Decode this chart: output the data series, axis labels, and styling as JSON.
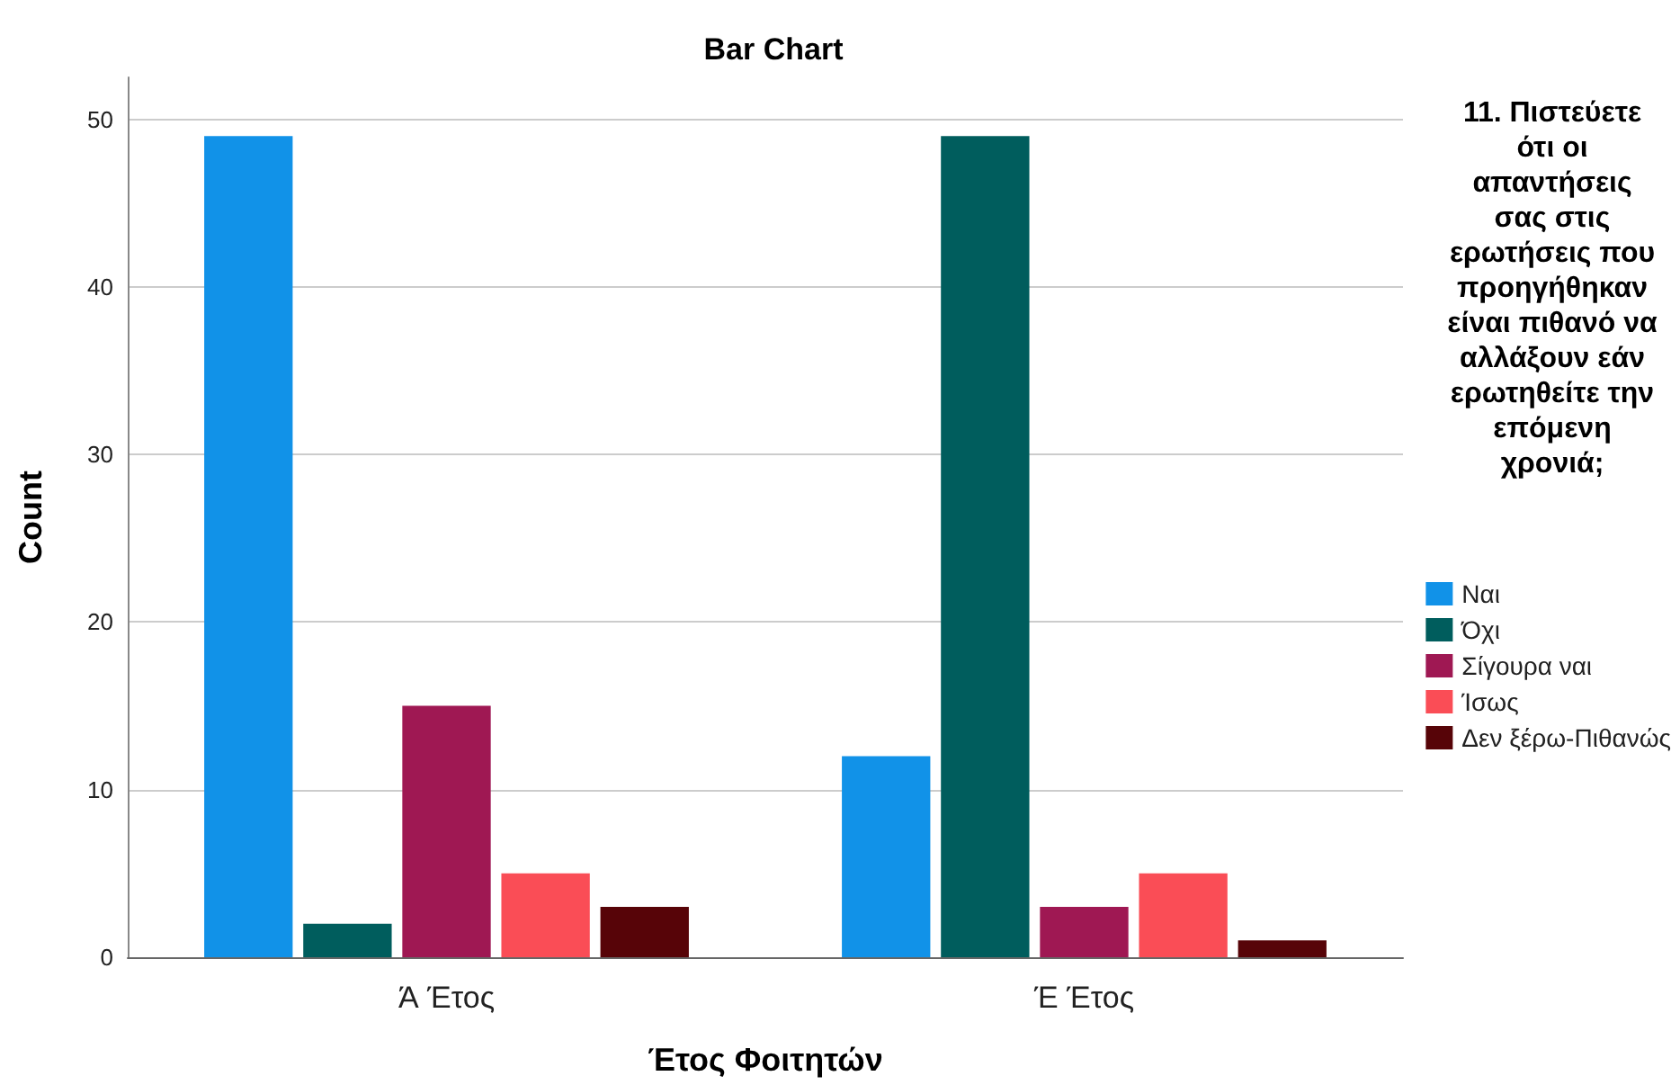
{
  "chart_data": {
    "type": "bar",
    "title": "Bar Chart",
    "xlabel": "Έτος Φοιτητών",
    "ylabel": "Count",
    "legend_title": "11. Πιστεύετε ότι οι απαντήσεις σας στις ερωτήσεις που προηγήθηκαν είναι πιθανό να αλλάξουν εάν ερωτηθείτε την επόμενη χρονιά;",
    "categories": [
      "Ά Έτος",
      "Έ Έτος"
    ],
    "series": [
      {
        "name": "Ναι",
        "color": "#1192e8",
        "values": [
          49,
          12
        ]
      },
      {
        "name": "Όχι",
        "color": "#005d5d",
        "values": [
          2,
          49
        ]
      },
      {
        "name": "Σίγουρα ναι",
        "color": "#9f1853",
        "values": [
          15,
          3
        ]
      },
      {
        "name": "Ίσως",
        "color": "#fa4d56",
        "values": [
          5,
          5
        ]
      },
      {
        "name": "Δεν ξέρω-Πιθανώς",
        "color": "#570408",
        "values": [
          3,
          1
        ]
      }
    ],
    "ylim": [
      0,
      52.5
    ],
    "yticks": [
      0,
      10,
      20,
      30,
      40,
      50
    ],
    "grid": "y",
    "legend": "right"
  }
}
